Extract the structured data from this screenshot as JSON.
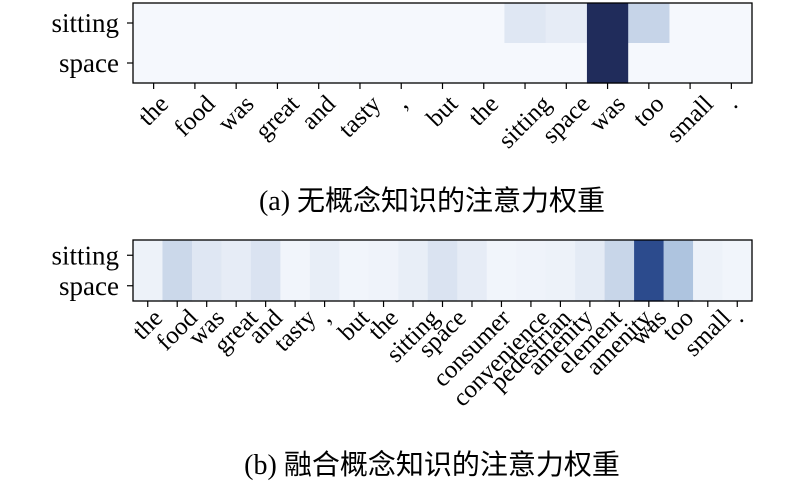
{
  "colors": {
    "background": "#ffffff",
    "frame": "#000000",
    "text": "#000000"
  },
  "colorscale": [
    [
      0,
      "#f7fafe"
    ],
    [
      0.1,
      "#e2e9f4"
    ],
    [
      0.2,
      "#c8d6e9"
    ],
    [
      0.35,
      "#a8bfdc"
    ],
    [
      0.6,
      "#4f76b2"
    ],
    [
      0.8,
      "#2c4b8d"
    ],
    [
      1,
      "#1f2855"
    ]
  ],
  "chart_data": [
    {
      "type": "heatmap",
      "caption": "(a) 无概念知识的注意力权重",
      "x": [
        "the",
        "food",
        "was",
        "great",
        "and",
        "tasty",
        ",",
        "but",
        "the",
        "sitting",
        "space",
        "was",
        "too",
        "small",
        "."
      ],
      "y": [
        "sitting",
        "space"
      ],
      "values": [
        [
          0.01,
          0.01,
          0.01,
          0.01,
          0.01,
          0.01,
          0.01,
          0.01,
          0.01,
          0.11,
          0.08,
          0.98,
          0.21,
          0.01,
          0.01
        ],
        [
          0.01,
          0.01,
          0.01,
          0.01,
          0.01,
          0.01,
          0.01,
          0.01,
          0.01,
          0.01,
          0.01,
          0.98,
          0.01,
          0.01,
          0.01
        ]
      ]
    },
    {
      "type": "heatmap",
      "caption": "(b) 融合概念知识的注意力权重",
      "x": [
        "the",
        "food",
        "was",
        "great",
        "and",
        "tasty",
        ",",
        "but",
        "the",
        "sitting",
        "space",
        "consumer",
        "convenience",
        "pedestrian",
        "amenity",
        "element",
        "amenity",
        "was",
        "too",
        "small",
        "."
      ],
      "y": [
        "sitting",
        "space"
      ],
      "values": [
        [
          0.05,
          0.19,
          0.11,
          0.08,
          0.13,
          0.03,
          0.07,
          0.03,
          0.04,
          0.07,
          0.13,
          0.08,
          0.03,
          0.04,
          0.05,
          0.09,
          0.2,
          0.8,
          0.32,
          0.05,
          0.03
        ],
        [
          0.05,
          0.19,
          0.11,
          0.08,
          0.13,
          0.03,
          0.07,
          0.03,
          0.04,
          0.07,
          0.13,
          0.08,
          0.03,
          0.04,
          0.05,
          0.09,
          0.2,
          0.8,
          0.32,
          0.05,
          0.03
        ]
      ]
    }
  ]
}
